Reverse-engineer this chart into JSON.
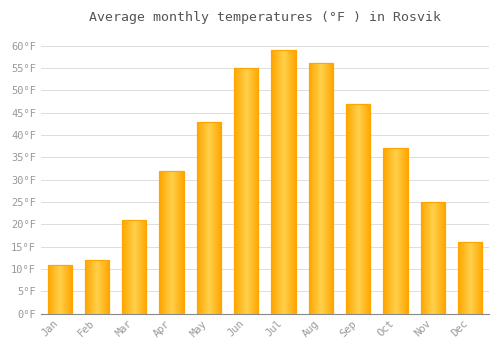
{
  "title": "Average monthly temperatures (°F ) in Rosvik",
  "months": [
    "Jan",
    "Feb",
    "Mar",
    "Apr",
    "May",
    "Jun",
    "Jul",
    "Aug",
    "Sep",
    "Oct",
    "Nov",
    "Dec"
  ],
  "values": [
    11,
    12,
    21,
    32,
    43,
    55,
    59,
    56,
    47,
    37,
    25,
    16
  ],
  "bar_color_center": "#FFD04A",
  "bar_color_edge": "#FFA500",
  "background_color": "#FFFFFF",
  "plot_bg_color": "#FFFFFF",
  "grid_color": "#DDDDDD",
  "tick_label_color": "#999999",
  "title_color": "#555555",
  "ylim": [
    0,
    63
  ],
  "yticks": [
    0,
    5,
    10,
    15,
    20,
    25,
    30,
    35,
    40,
    45,
    50,
    55,
    60
  ],
  "figsize": [
    5.0,
    3.5
  ],
  "dpi": 100
}
